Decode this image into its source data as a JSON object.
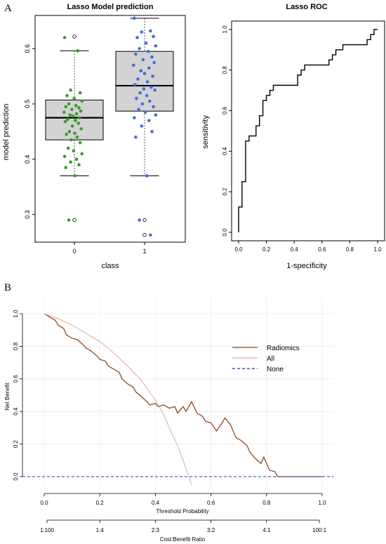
{
  "panels": {
    "a_letter": "A",
    "b_letter": "B"
  },
  "chart_data": [
    {
      "type": "box",
      "title": "Lasso Model prediction",
      "xlabel": "class",
      "ylabel": "model prediction",
      "categories": [
        "0",
        "1"
      ],
      "yticks": [
        "0.3",
        "0.4",
        "0.5",
        "0.6"
      ],
      "ylim": [
        0.25,
        0.66
      ],
      "box_fill": "#d3d3d3",
      "boxes": [
        {
          "category": "0",
          "lower_whisker": 0.37,
          "q1": 0.435,
          "median": 0.475,
          "q3": 0.507,
          "upper_whisker": 0.596,
          "outliers": [
            0.622,
            0.29
          ]
        },
        {
          "category": "1",
          "lower_whisker": 0.37,
          "q1": 0.487,
          "median": 0.533,
          "q3": 0.595,
          "upper_whisker": 0.655,
          "outliers": [
            0.263,
            0.29
          ]
        }
      ],
      "jitter_colors": {
        "0": "#3a9a2a",
        "1": "#3f6fe0"
      },
      "jitter_points": {
        "0": [
          0.62,
          0.596,
          0.525,
          0.52,
          0.515,
          0.51,
          0.505,
          0.5,
          0.497,
          0.495,
          0.493,
          0.49,
          0.487,
          0.485,
          0.482,
          0.48,
          0.478,
          0.475,
          0.472,
          0.47,
          0.468,
          0.465,
          0.46,
          0.455,
          0.45,
          0.447,
          0.445,
          0.44,
          0.435,
          0.43,
          0.42,
          0.415,
          0.41,
          0.405,
          0.4,
          0.395,
          0.39,
          0.385,
          0.37,
          0.29
        ],
        "1": [
          0.655,
          0.632,
          0.63,
          0.622,
          0.62,
          0.61,
          0.605,
          0.6,
          0.595,
          0.59,
          0.585,
          0.58,
          0.575,
          0.57,
          0.565,
          0.56,
          0.555,
          0.55,
          0.545,
          0.54,
          0.535,
          0.53,
          0.527,
          0.525,
          0.52,
          0.515,
          0.51,
          0.505,
          0.5,
          0.495,
          0.49,
          0.485,
          0.48,
          0.475,
          0.47,
          0.46,
          0.45,
          0.44,
          0.37,
          0.29,
          0.263
        ]
      }
    },
    {
      "type": "line",
      "title": "Lasso ROC",
      "xlabel": "1-specificity",
      "ylabel": "sensitivity",
      "xticks": [
        "0.0",
        "0.2",
        "0.4",
        "0.6",
        "0.8",
        "1.0"
      ],
      "yticks": [
        "0.0",
        "0.2",
        "0.4",
        "0.6",
        "0.8",
        "1.0"
      ],
      "xlim": [
        0,
        1
      ],
      "ylim": [
        0,
        1
      ],
      "series": [
        {
          "color": "#000000",
          "points": [
            [
              0,
              0
            ],
            [
              0,
              0.125
            ],
            [
              0.025,
              0.125
            ],
            [
              0.025,
              0.25
            ],
            [
              0.05,
              0.25
            ],
            [
              0.05,
              0.45
            ],
            [
              0.075,
              0.45
            ],
            [
              0.075,
              0.475
            ],
            [
              0.125,
              0.475
            ],
            [
              0.125,
              0.525
            ],
            [
              0.15,
              0.525
            ],
            [
              0.15,
              0.575
            ],
            [
              0.175,
              0.575
            ],
            [
              0.175,
              0.65
            ],
            [
              0.2,
              0.65
            ],
            [
              0.2,
              0.675
            ],
            [
              0.225,
              0.675
            ],
            [
              0.225,
              0.7
            ],
            [
              0.25,
              0.7
            ],
            [
              0.25,
              0.725
            ],
            [
              0.425,
              0.725
            ],
            [
              0.425,
              0.775
            ],
            [
              0.45,
              0.775
            ],
            [
              0.45,
              0.8
            ],
            [
              0.475,
              0.8
            ],
            [
              0.475,
              0.825
            ],
            [
              0.65,
              0.825
            ],
            [
              0.65,
              0.85
            ],
            [
              0.675,
              0.85
            ],
            [
              0.675,
              0.875
            ],
            [
              0.7,
              0.875
            ],
            [
              0.7,
              0.9
            ],
            [
              0.75,
              0.9
            ],
            [
              0.75,
              0.925
            ],
            [
              0.925,
              0.925
            ],
            [
              0.925,
              0.95
            ],
            [
              0.95,
              0.95
            ],
            [
              0.95,
              0.975
            ],
            [
              0.975,
              0.975
            ],
            [
              0.975,
              1
            ],
            [
              1,
              1
            ]
          ]
        }
      ]
    },
    {
      "type": "line",
      "title": "",
      "xlabel": "Threshold Probability",
      "ylabel": "Net Benefit",
      "secondary_xlabel": "Cost:Benefit Ratio",
      "xticks": [
        "0.0",
        "0.2",
        "0.4",
        "0.6",
        "0.8",
        "1.0"
      ],
      "yticks": [
        "0.0",
        "0.2",
        "0.4",
        "0.6",
        "0.8",
        "1.0"
      ],
      "cost_benefit_ticks": [
        {
          "at": 0.01,
          "label": "1:100"
        },
        {
          "at": 0.2,
          "label": "1:4"
        },
        {
          "at": 0.4,
          "label": "2:3"
        },
        {
          "at": 0.6,
          "label": "3:2"
        },
        {
          "at": 0.8,
          "label": "4:1"
        },
        {
          "at": 0.99,
          "label": "100:1"
        }
      ],
      "xlim": [
        0,
        1
      ],
      "ylim": [
        0,
        1
      ],
      "legend_position": "top-right",
      "series": [
        {
          "name": "Radiomics",
          "color": "#8b4a1f",
          "dash": "",
          "points": [
            [
              0,
              1
            ],
            [
              0.02,
              0.98
            ],
            [
              0.04,
              0.96
            ],
            [
              0.05,
              0.93
            ],
            [
              0.07,
              0.91
            ],
            [
              0.08,
              0.87
            ],
            [
              0.1,
              0.85
            ],
            [
              0.12,
              0.84
            ],
            [
              0.14,
              0.81
            ],
            [
              0.15,
              0.79
            ],
            [
              0.17,
              0.77
            ],
            [
              0.19,
              0.74
            ],
            [
              0.2,
              0.72
            ],
            [
              0.22,
              0.71
            ],
            [
              0.23,
              0.68
            ],
            [
              0.25,
              0.66
            ],
            [
              0.27,
              0.64
            ],
            [
              0.28,
              0.6
            ],
            [
              0.3,
              0.57
            ],
            [
              0.32,
              0.55
            ],
            [
              0.33,
              0.52
            ],
            [
              0.35,
              0.49
            ],
            [
              0.37,
              0.46
            ],
            [
              0.38,
              0.44
            ],
            [
              0.4,
              0.45
            ],
            [
              0.41,
              0.43
            ],
            [
              0.43,
              0.44
            ],
            [
              0.45,
              0.42
            ],
            [
              0.47,
              0.43
            ],
            [
              0.48,
              0.39
            ],
            [
              0.5,
              0.43
            ],
            [
              0.51,
              0.4
            ],
            [
              0.53,
              0.46
            ],
            [
              0.55,
              0.39
            ],
            [
              0.57,
              0.37
            ],
            [
              0.58,
              0.34
            ],
            [
              0.6,
              0.33
            ],
            [
              0.62,
              0.28
            ],
            [
              0.64,
              0.33
            ],
            [
              0.65,
              0.36
            ],
            [
              0.67,
              0.32
            ],
            [
              0.69,
              0.24
            ],
            [
              0.71,
              0.22
            ],
            [
              0.73,
              0.19
            ],
            [
              0.74,
              0.15
            ],
            [
              0.76,
              0.11
            ],
            [
              0.78,
              0.08
            ],
            [
              0.79,
              0.12
            ],
            [
              0.81,
              0.04
            ],
            [
              0.83,
              0.03
            ],
            [
              0.84,
              0.0
            ],
            [
              1,
              0.0
            ]
          ]
        },
        {
          "name": "All",
          "color": "#e2a6a2",
          "dash": "",
          "points": [
            [
              0,
              1
            ],
            [
              0.05,
              0.97
            ],
            [
              0.1,
              0.93
            ],
            [
              0.15,
              0.88
            ],
            [
              0.2,
              0.83
            ],
            [
              0.25,
              0.76
            ],
            [
              0.3,
              0.68
            ],
            [
              0.35,
              0.59
            ],
            [
              0.4,
              0.47
            ],
            [
              0.43,
              0.38
            ],
            [
              0.45,
              0.3
            ],
            [
              0.48,
              0.19
            ],
            [
              0.5,
              0.1
            ],
            [
              0.52,
              0.0
            ],
            [
              0.53,
              -0.05
            ]
          ]
        },
        {
          "name": "None",
          "color": "#2e2ec4",
          "dash": "4,3",
          "points": [
            [
              0,
              0
            ],
            [
              1,
              0
            ]
          ]
        }
      ]
    }
  ]
}
